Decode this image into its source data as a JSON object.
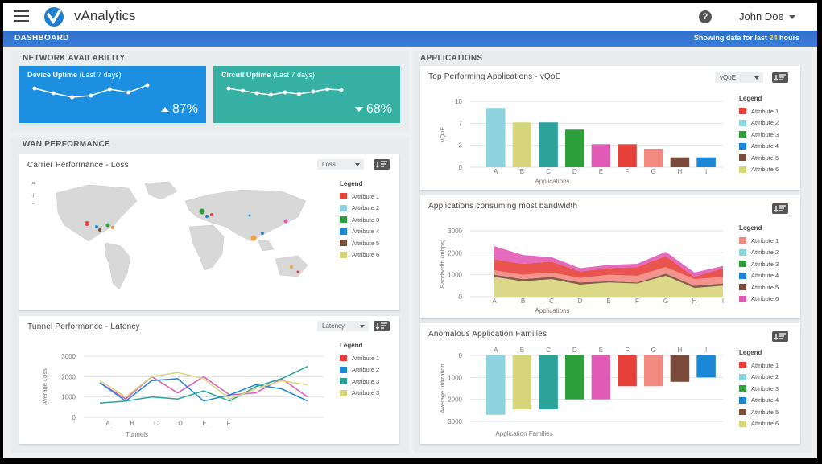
{
  "app": {
    "title": "vAnalytics",
    "user": "John Doe",
    "help": "?"
  },
  "nav": {
    "title": "DASHBOARD",
    "info_prefix": "Showing data for last",
    "info_hours": "24",
    "info_suffix": "hours"
  },
  "network": {
    "title": "NETWORK AVAILABILITY",
    "device": {
      "title": "Device Uptime",
      "period": "(Last 7 days)",
      "value": "87%",
      "trend": "up",
      "color": "#1c8fe0",
      "spark": [
        60,
        48,
        38,
        42,
        58,
        50,
        68
      ]
    },
    "circuit": {
      "title": "Circuit Uptime",
      "period": "(Last 7 days)",
      "value": "68%",
      "trend": "down",
      "color": "#35b0a3",
      "spark": [
        60,
        54,
        48,
        44,
        50,
        46,
        52,
        58,
        56
      ]
    }
  },
  "wan": {
    "title": "WAN PERFORMANCE"
  },
  "apps": {
    "title": "APPLICATIONS"
  },
  "colors": {
    "a1": "#e8413c",
    "a2": "#8fd3e0",
    "a3": "#2ea03b",
    "a4": "#1b87d6",
    "a5": "#7a4a3a",
    "a6": "#d7d57a",
    "a2b": "#f28a80",
    "a6b": "#e05ab6",
    "teal": "#2ba39b",
    "salmon": "#f3918a"
  },
  "carrier": {
    "title": "Carrier Performance - Loss",
    "dropdown": "Loss",
    "legend_title": "Legend",
    "legend": [
      "Attribute 1",
      "Attribute 2",
      "Attribute 3",
      "Attribute 4",
      "Attribute 5",
      "Attribute 6"
    ],
    "zoom_in": "+",
    "zoom_out": "-"
  },
  "tunnel": {
    "title": "Tunnel Performance - Latency",
    "dropdown": "Latency",
    "legend_title": "Legend",
    "legend": [
      "Attribute 1",
      "Attribute 2",
      "Attribute 3",
      "Attribute 3"
    ],
    "chart_data": {
      "type": "line",
      "xlabel": "Tunnels",
      "ylabel": "Average Loss",
      "y_ticks": [
        "3000",
        "2000",
        "1000",
        "0"
      ],
      "x_ticks": [
        "A",
        "B",
        "C",
        "D",
        "E",
        "F"
      ],
      "ylim": [
        0,
        3000
      ],
      "series": [
        {
          "name": "Attribute 1",
          "values": [
            1700,
            900,
            2000,
            1200,
            2000,
            1100,
            1200,
            1900,
            1000
          ]
        },
        {
          "name": "Attribute 2",
          "values": [
            1700,
            800,
            1800,
            1900,
            800,
            1100,
            1600,
            1400,
            800
          ]
        },
        {
          "name": "Attribute 3",
          "values": [
            700,
            800,
            1000,
            900,
            1300,
            800,
            1500,
            1900,
            2500
          ]
        },
        {
          "name": "Attribute 3",
          "values": [
            1800,
            1000,
            2000,
            2200,
            1900,
            900,
            1400,
            1800,
            1600
          ]
        }
      ]
    }
  },
  "vqoe": {
    "title": "Top Performing Applications - vQoE",
    "dropdown": "vQoE",
    "legend_title": "Legend",
    "legend": [
      "Attribute 1",
      "Attribute 2",
      "Attribute 3",
      "Attribute 4",
      "Attribute 5",
      "Attribute 6"
    ],
    "chart_data": {
      "type": "bar",
      "xlabel": "Applications",
      "ylabel": "vQoE",
      "y_ticks": [
        "10",
        "7",
        "3",
        "0"
      ],
      "categories": [
        "A",
        "B",
        "C",
        "D",
        "E",
        "F",
        "G",
        "H",
        "I"
      ],
      "values": [
        9,
        6.8,
        6.8,
        5.7,
        3.5,
        3.5,
        2.8,
        1.5,
        1.5
      ],
      "ylim": [
        0,
        10
      ]
    }
  },
  "bandwidth": {
    "title": "Applications consuming most bandwidth",
    "legend_title": "Legend",
    "legend": [
      "Attribute 1",
      "Attribute 2",
      "Attribute 3",
      "Attribute 4",
      "Attribute 5",
      "Attribute 6"
    ],
    "chart_data": {
      "type": "area",
      "xlabel": "Applications",
      "ylabel": "Bandwidth (mbps)",
      "y_ticks": [
        "3000",
        "2000",
        "1000",
        "0"
      ],
      "categories": [
        "A",
        "B",
        "C",
        "D",
        "E",
        "F",
        "G",
        "H",
        "I"
      ],
      "ylim": [
        0,
        3000
      ],
      "series": [
        {
          "name": "Attribute 6",
          "values": [
            900,
            700,
            800,
            550,
            650,
            600,
            950,
            400,
            500
          ]
        },
        {
          "name": "Attribute 5",
          "values": [
            100,
            100,
            100,
            100,
            50,
            50,
            100,
            100,
            100
          ]
        },
        {
          "name": "Attribute 3",
          "values": [
            0,
            0,
            0,
            0,
            0,
            0,
            0,
            0,
            0
          ]
        },
        {
          "name": "Attribute 2",
          "values": [
            200,
            200,
            200,
            200,
            300,
            300,
            300,
            300,
            300
          ]
        },
        {
          "name": "Attribute 1",
          "values": [
            500,
            500,
            500,
            300,
            300,
            400,
            500,
            100,
            400
          ]
        },
        {
          "name": "Attribute 4",
          "values": [
            0,
            0,
            0,
            0,
            0,
            0,
            0,
            0,
            0
          ]
        },
        {
          "name": "Attribute 6",
          "values": [
            600,
            400,
            200,
            150,
            150,
            150,
            200,
            200,
            100
          ]
        }
      ]
    }
  },
  "anomalous": {
    "title": "Anomalous Application Families",
    "legend_title": "Legend",
    "legend": [
      "Attribute 1",
      "Attribute 2",
      "Attribute 3",
      "Attribute 4",
      "Attribute 5",
      "Attribute 6"
    ],
    "chart_data": {
      "type": "bar",
      "xlabel": "Application Families",
      "ylabel": "Average utilization",
      "y_ticks": [
        "0",
        "1000",
        "2000",
        "3000"
      ],
      "categories": [
        "A",
        "B",
        "C",
        "D",
        "E",
        "F",
        "G",
        "H",
        "I"
      ],
      "values": [
        2700,
        2450,
        2450,
        2000,
        2000,
        1400,
        1400,
        1200,
        1000
      ],
      "ylim": [
        0,
        3000
      ]
    }
  }
}
